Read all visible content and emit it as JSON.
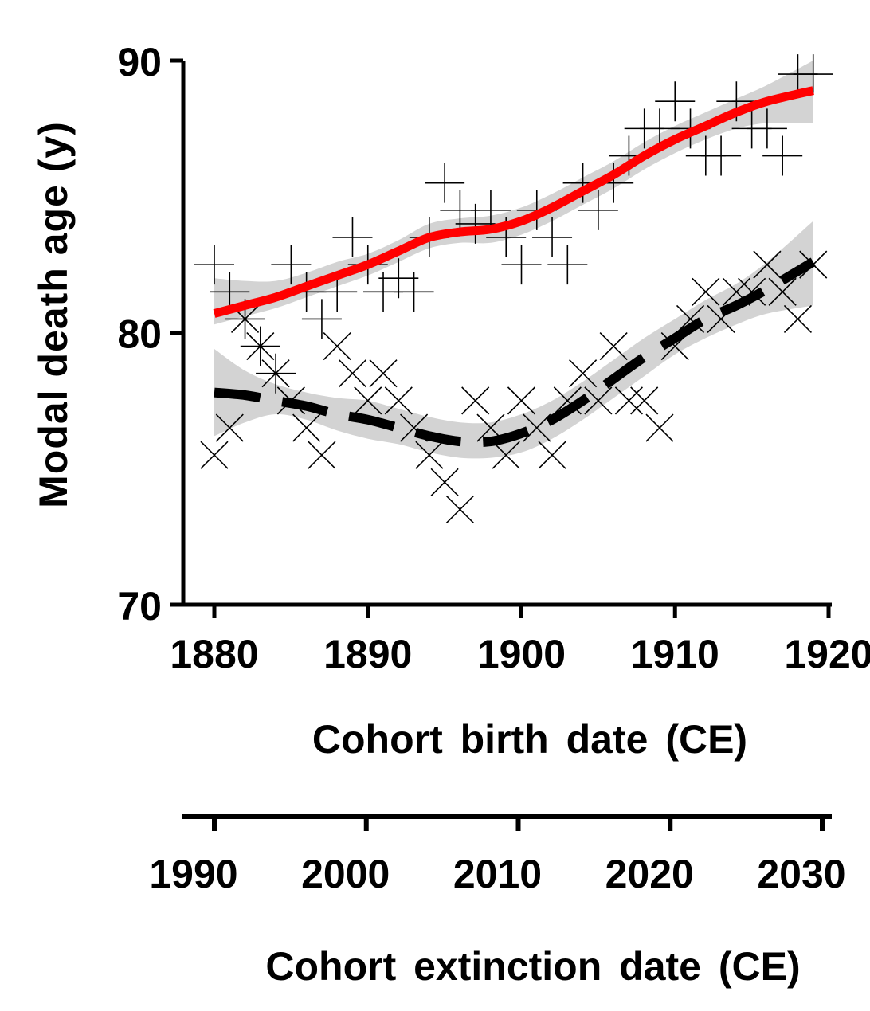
{
  "chart_data": {
    "type": "scatter",
    "title": "",
    "ylabel": "Modal death age (y)",
    "xlabel": "Cohort birth date (CE)",
    "x2label": "Cohort extinction date (CE)",
    "xlim": [
      1880,
      1920
    ],
    "ylim": [
      70,
      90
    ],
    "x2lim": [
      1990,
      2030
    ],
    "xticks": [
      "1880",
      "1890",
      "1900",
      "1910",
      "1920"
    ],
    "yticks": [
      "70",
      "80",
      "90"
    ],
    "x2ticks": [
      "1990",
      "2000",
      "2010",
      "2020",
      "2030"
    ],
    "grid": false,
    "series": [
      {
        "marker": "plus",
        "fit": "solid",
        "color": "#ff0000",
        "band_color": "#d3d3d3",
        "points": [
          [
            1880,
            82.5
          ],
          [
            1881,
            81.5
          ],
          [
            1882,
            80.5
          ],
          [
            1883,
            79.5
          ],
          [
            1884,
            78.5
          ],
          [
            1885,
            82.5
          ],
          [
            1886,
            81.5
          ],
          [
            1887,
            80.5
          ],
          [
            1888,
            81.5
          ],
          [
            1889,
            83.5
          ],
          [
            1890,
            82.5
          ],
          [
            1891,
            81.5
          ],
          [
            1892,
            82.0
          ],
          [
            1893,
            81.5
          ],
          [
            1894,
            83.5
          ],
          [
            1895,
            85.5
          ],
          [
            1896,
            84.5
          ],
          [
            1897,
            84.0
          ],
          [
            1898,
            84.5
          ],
          [
            1899,
            83.5
          ],
          [
            1900,
            82.5
          ],
          [
            1901,
            84.5
          ],
          [
            1902,
            83.5
          ],
          [
            1903,
            82.5
          ],
          [
            1904,
            85.5
          ],
          [
            1905,
            84.5
          ],
          [
            1906,
            85.5
          ],
          [
            1907,
            86.5
          ],
          [
            1908,
            87.5
          ],
          [
            1909,
            87.5
          ],
          [
            1910,
            88.5
          ],
          [
            1911,
            87.5
          ],
          [
            1912,
            86.5
          ],
          [
            1913,
            86.5
          ],
          [
            1914,
            88.5
          ],
          [
            1915,
            87.5
          ],
          [
            1916,
            87.5
          ],
          [
            1917,
            86.5
          ],
          [
            1918,
            89.5
          ],
          [
            1919,
            89.5
          ]
        ],
        "fit_line": [
          [
            1880,
            80.7
          ],
          [
            1882,
            81.0
          ],
          [
            1884,
            81.3
          ],
          [
            1886,
            81.7
          ],
          [
            1888,
            82.1
          ],
          [
            1890,
            82.5
          ],
          [
            1892,
            83.0
          ],
          [
            1894,
            83.5
          ],
          [
            1896,
            83.7
          ],
          [
            1898,
            83.8
          ],
          [
            1900,
            84.1
          ],
          [
            1902,
            84.6
          ],
          [
            1904,
            85.2
          ],
          [
            1906,
            85.8
          ],
          [
            1908,
            86.5
          ],
          [
            1910,
            87.1
          ],
          [
            1912,
            87.6
          ],
          [
            1914,
            88.1
          ],
          [
            1916,
            88.5
          ],
          [
            1919,
            88.9
          ]
        ],
        "band": [
          [
            1880,
            80.3,
            82.0
          ],
          [
            1882,
            80.6,
            81.9
          ],
          [
            1884,
            80.9,
            81.9
          ],
          [
            1886,
            81.3,
            82.2
          ],
          [
            1888,
            81.7,
            82.6
          ],
          [
            1890,
            82.1,
            82.9
          ],
          [
            1892,
            82.6,
            83.4
          ],
          [
            1894,
            83.1,
            84.0
          ],
          [
            1896,
            83.3,
            84.2
          ],
          [
            1898,
            83.3,
            84.3
          ],
          [
            1900,
            83.6,
            84.6
          ],
          [
            1902,
            84.1,
            85.1
          ],
          [
            1904,
            84.7,
            85.7
          ],
          [
            1906,
            85.3,
            86.3
          ],
          [
            1908,
            86.0,
            87.0
          ],
          [
            1910,
            86.6,
            87.6
          ],
          [
            1912,
            87.1,
            88.1
          ],
          [
            1914,
            87.5,
            88.6
          ],
          [
            1916,
            87.7,
            89.1
          ],
          [
            1919,
            87.7,
            90.0
          ]
        ]
      },
      {
        "marker": "cross",
        "fit": "dashed",
        "color": "#000000",
        "band_color": "#d3d3d3",
        "points": [
          [
            1880,
            75.5
          ],
          [
            1881,
            76.5
          ],
          [
            1882,
            80.5
          ],
          [
            1883,
            79.5
          ],
          [
            1884,
            78.5
          ],
          [
            1885,
            77.5
          ],
          [
            1886,
            76.5
          ],
          [
            1887,
            75.5
          ],
          [
            1888,
            79.5
          ],
          [
            1889,
            78.5
          ],
          [
            1890,
            77.5
          ],
          [
            1891,
            78.5
          ],
          [
            1892,
            77.5
          ],
          [
            1893,
            76.5
          ],
          [
            1894,
            75.5
          ],
          [
            1895,
            74.5
          ],
          [
            1896,
            73.5
          ],
          [
            1897,
            77.5
          ],
          [
            1898,
            76.5
          ],
          [
            1899,
            75.5
          ],
          [
            1900,
            77.5
          ],
          [
            1901,
            76.5
          ],
          [
            1902,
            75.5
          ],
          [
            1903,
            77.5
          ],
          [
            1904,
            78.5
          ],
          [
            1905,
            77.5
          ],
          [
            1906,
            79.5
          ],
          [
            1907,
            77.5
          ],
          [
            1908,
            77.5
          ],
          [
            1909,
            76.5
          ],
          [
            1910,
            79.5
          ],
          [
            1911,
            80.5
          ],
          [
            1912,
            81.5
          ],
          [
            1913,
            80.5
          ],
          [
            1914,
            81.5
          ],
          [
            1915,
            81.5
          ],
          [
            1916,
            82.5
          ],
          [
            1917,
            81.5
          ],
          [
            1918,
            80.5
          ],
          [
            1919,
            82.5
          ]
        ],
        "fit_line": [
          [
            1880,
            77.8
          ],
          [
            1882,
            77.7
          ],
          [
            1884,
            77.5
          ],
          [
            1886,
            77.3
          ],
          [
            1888,
            77.0
          ],
          [
            1890,
            76.8
          ],
          [
            1892,
            76.5
          ],
          [
            1894,
            76.2
          ],
          [
            1896,
            76.0
          ],
          [
            1898,
            76.0
          ],
          [
            1900,
            76.3
          ],
          [
            1902,
            76.8
          ],
          [
            1904,
            77.5
          ],
          [
            1906,
            78.3
          ],
          [
            1908,
            79.1
          ],
          [
            1910,
            79.8
          ],
          [
            1912,
            80.5
          ],
          [
            1914,
            81.0
          ],
          [
            1916,
            81.6
          ],
          [
            1919,
            82.6
          ]
        ],
        "band": [
          [
            1880,
            76.2,
            79.4
          ],
          [
            1882,
            76.7,
            78.6
          ],
          [
            1884,
            77.0,
            78.1
          ],
          [
            1886,
            76.8,
            77.8
          ],
          [
            1888,
            76.4,
            77.6
          ],
          [
            1890,
            76.1,
            77.5
          ],
          [
            1892,
            75.9,
            77.2
          ],
          [
            1894,
            75.6,
            76.9
          ],
          [
            1896,
            75.4,
            76.7
          ],
          [
            1898,
            75.4,
            76.7
          ],
          [
            1900,
            75.6,
            77.0
          ],
          [
            1902,
            76.1,
            77.5
          ],
          [
            1904,
            76.8,
            78.2
          ],
          [
            1906,
            77.6,
            79.0
          ],
          [
            1908,
            78.4,
            79.8
          ],
          [
            1910,
            79.2,
            80.5
          ],
          [
            1912,
            79.8,
            81.2
          ],
          [
            1914,
            80.3,
            81.8
          ],
          [
            1916,
            80.7,
            82.6
          ],
          [
            1919,
            81.0,
            84.1
          ]
        ]
      }
    ]
  }
}
